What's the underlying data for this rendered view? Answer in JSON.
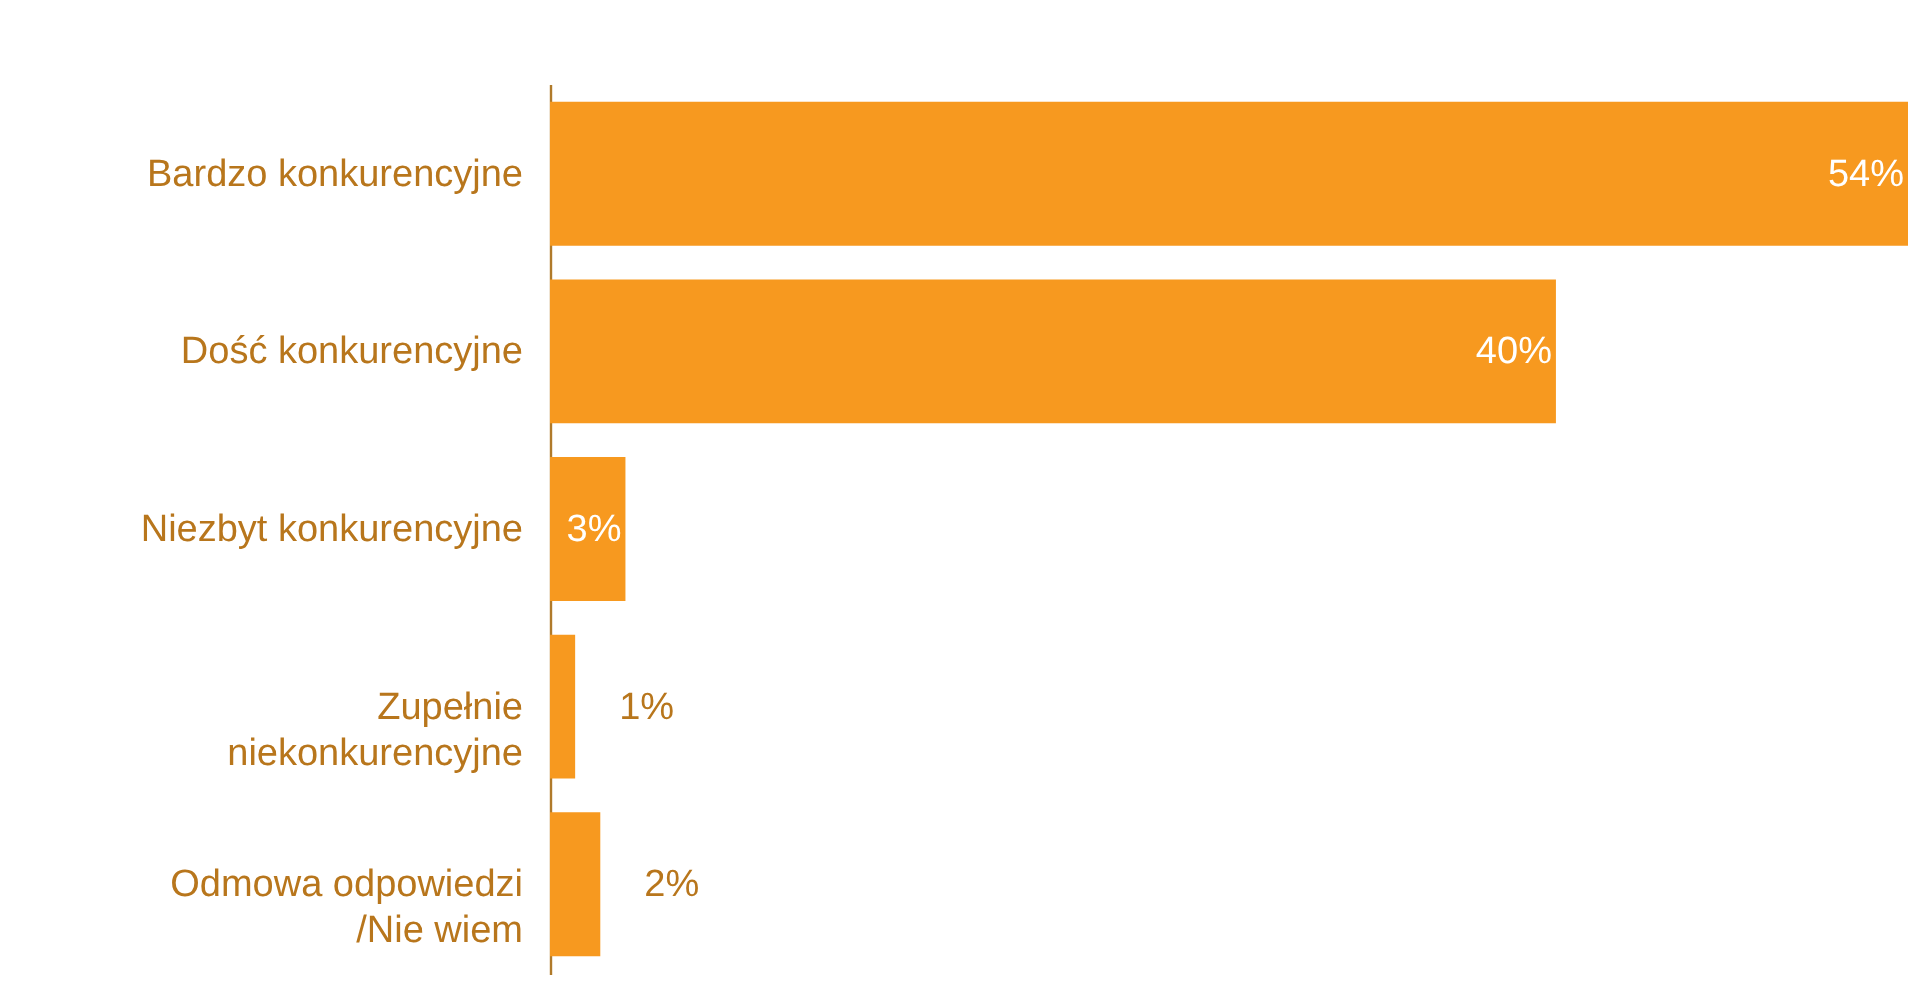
{
  "chart_data": {
    "type": "bar",
    "orientation": "horizontal",
    "categories": [
      "Bardzo konkurencyjne",
      "Dość konkurencyjne",
      "Niezbyt konkurencyjne",
      "Zupełnie\nniekonkurencyjne",
      "Odmowa odpowiedzi\n/Nie wiem"
    ],
    "values": [
      54,
      40,
      3,
      1,
      2
    ],
    "value_labels": [
      "54%",
      "40%",
      "3%",
      "1%",
      "2%"
    ],
    "color": "#f7991f",
    "xlim": [
      0,
      54
    ]
  }
}
